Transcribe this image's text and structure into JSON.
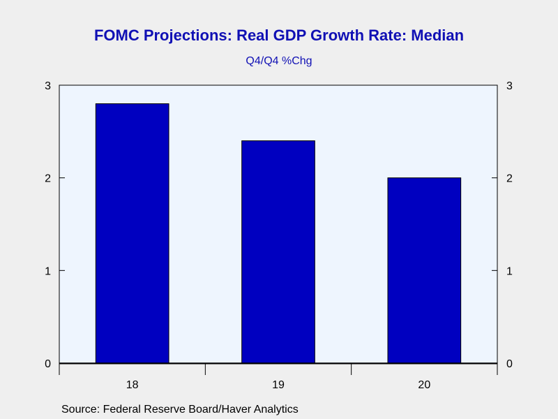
{
  "chart_data": {
    "type": "bar",
    "title": "FOMC Projections: Real GDP Growth Rate: Median",
    "subtitle": "Q4/Q4 %Chg",
    "categories": [
      "18",
      "19",
      "20"
    ],
    "values": [
      2.8,
      2.4,
      2.0
    ],
    "ylim": [
      0,
      3
    ],
    "yticks": [
      0,
      1,
      2,
      3
    ],
    "dual_y_axis": true,
    "grid": false,
    "source": "Source:  Federal Reserve Board/Haver Analytics",
    "colors": {
      "bar_fill": "#0000c0",
      "bar_stroke": "#000000",
      "plot_bg": "#eef5fe",
      "title": "#1010b4"
    }
  }
}
